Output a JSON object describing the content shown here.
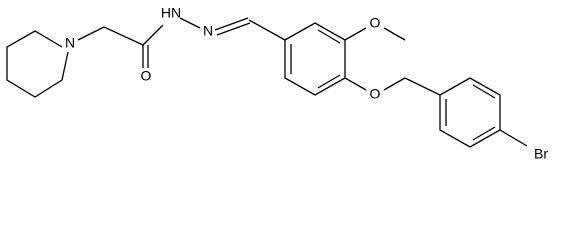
{
  "atoms": {
    "piperidine_n": "N",
    "carbonyl_o": "O",
    "hydrazide_nh": "HN",
    "imine_n": "N",
    "methoxy_o": "O",
    "ether_o": "O",
    "bromine": "Br"
  }
}
